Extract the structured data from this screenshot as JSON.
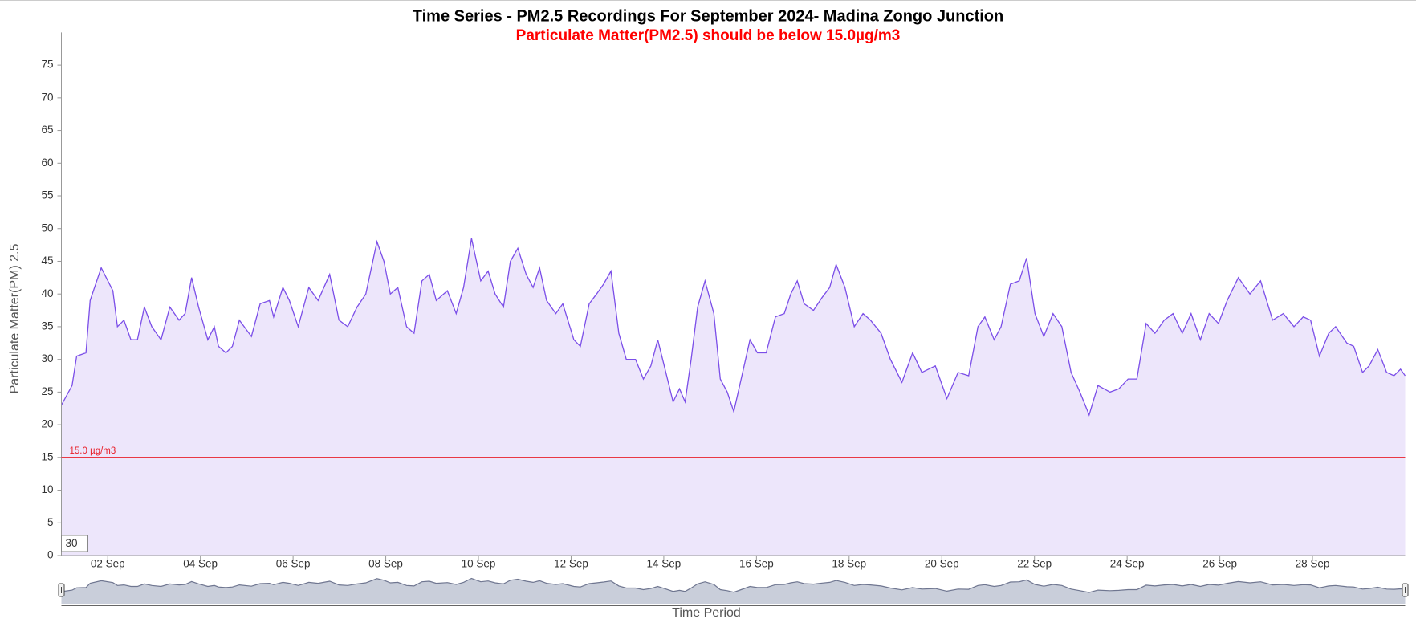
{
  "chart_data": {
    "type": "area",
    "title": "Time Series - PM2.5 Recordings For September 2024- Madina Zongo Junction",
    "subtitle": "Particulate Matter(PM2.5) should be below 15.0µg/m3",
    "ylabel": "Particulate Matter(PM) 2.5",
    "xlabel": "Time Period",
    "color": "#7b4ee8",
    "fill_color": "#ede6fb",
    "rolling_input": 30,
    "threshold": {
      "value": 15,
      "label": "15.0 µg/m3",
      "color": "#e8202a"
    },
    "xlim": [
      1,
      30
    ],
    "xticks": [
      {
        "value": 2,
        "label": "02 Sep"
      },
      {
        "value": 4,
        "label": "04 Sep"
      },
      {
        "value": 6,
        "label": "06 Sep"
      },
      {
        "value": 8,
        "label": "08 Sep"
      },
      {
        "value": 10,
        "label": "10 Sep"
      },
      {
        "value": 12,
        "label": "12 Sep"
      },
      {
        "value": 14,
        "label": "14 Sep"
      },
      {
        "value": 16,
        "label": "16 Sep"
      },
      {
        "value": 18,
        "label": "18 Sep"
      },
      {
        "value": 20,
        "label": "20 Sep"
      },
      {
        "value": 22,
        "label": "22 Sep"
      },
      {
        "value": 24,
        "label": "24 Sep"
      },
      {
        "value": 26,
        "label": "26 Sep"
      },
      {
        "value": 28,
        "label": "28 Sep"
      }
    ],
    "ylim": [
      0,
      80
    ],
    "yticks": [
      0,
      5,
      10,
      15,
      20,
      25,
      30,
      35,
      40,
      45,
      50,
      55,
      60,
      65,
      70,
      75
    ],
    "x": [
      1.0,
      1.23,
      1.33,
      1.53,
      1.62,
      1.86,
      2.11,
      2.21,
      2.35,
      2.5,
      2.64,
      2.79,
      2.95,
      3.15,
      3.34,
      3.54,
      3.67,
      3.81,
      3.96,
      4.16,
      4.3,
      4.39,
      4.55,
      4.69,
      4.84,
      5.1,
      5.29,
      5.49,
      5.58,
      5.78,
      5.92,
      6.11,
      6.34,
      6.54,
      6.79,
      6.99,
      7.18,
      7.38,
      7.57,
      7.81,
      7.96,
      8.1,
      8.26,
      8.45,
      8.61,
      8.78,
      8.94,
      9.09,
      9.33,
      9.52,
      9.68,
      9.85,
      10.05,
      10.21,
      10.36,
      10.54,
      10.69,
      10.85,
      11.03,
      11.18,
      11.32,
      11.47,
      11.67,
      11.82,
      12.06,
      12.2,
      12.39,
      12.55,
      12.7,
      12.86,
      13.03,
      13.19,
      13.39,
      13.56,
      13.72,
      13.87,
      14.01,
      14.2,
      14.34,
      14.46,
      14.59,
      14.73,
      14.89,
      15.08,
      15.22,
      15.37,
      15.51,
      15.67,
      15.86,
      16.02,
      16.21,
      16.41,
      16.6,
      16.74,
      16.88,
      17.03,
      17.23,
      17.42,
      17.58,
      17.72,
      17.91,
      18.11,
      18.3,
      18.46,
      18.69,
      18.89,
      19.14,
      19.37,
      19.57,
      19.86,
      20.11,
      20.35,
      20.58,
      20.78,
      20.93,
      21.13,
      21.28,
      21.48,
      21.67,
      21.83,
      22.01,
      22.2,
      22.4,
      22.59,
      22.79,
      22.98,
      23.18,
      23.37,
      23.63,
      23.82,
      24.02,
      24.21,
      24.41,
      24.6,
      24.8,
      24.99,
      25.19,
      25.38,
      25.58,
      25.77,
      25.97,
      26.16,
      26.4,
      26.65,
      26.88,
      27.14,
      27.37,
      27.6,
      27.8,
      27.96,
      28.15,
      28.35,
      28.5,
      28.74,
      28.89,
      29.08,
      29.22,
      29.41,
      29.6,
      29.76,
      29.9,
      30.0
    ],
    "values": [
      23,
      26,
      30.5,
      31,
      39,
      44,
      40.5,
      35,
      36,
      33,
      33,
      38,
      35,
      33,
      38,
      36,
      37,
      42.5,
      38,
      33,
      35,
      32,
      31,
      32,
      36,
      33.5,
      38.5,
      39,
      36.5,
      41,
      39,
      35,
      41,
      39,
      43,
      36,
      35,
      38,
      40,
      48,
      45,
      40,
      41,
      35,
      34,
      42,
      43,
      39,
      40.5,
      37,
      41,
      48.5,
      42,
      43.5,
      40,
      38,
      45,
      47,
      43,
      41,
      44,
      39,
      37,
      38.5,
      33,
      32,
      38.5,
      40,
      41.5,
      43.5,
      34,
      30,
      30,
      27,
      29,
      33,
      29,
      23.5,
      25.5,
      23.5,
      30,
      38,
      42,
      37,
      27,
      25,
      22,
      27,
      33,
      31,
      31,
      36.5,
      37,
      40,
      42,
      38.5,
      37.5,
      39.5,
      41,
      44.5,
      41,
      35,
      37,
      36,
      34,
      30,
      26.5,
      31,
      28,
      29,
      24,
      28,
      27.5,
      35,
      36.5,
      33,
      35,
      41.5,
      42,
      45.5,
      37,
      33.5,
      37,
      35,
      28,
      25,
      21.5,
      26,
      25,
      25.5,
      27,
      27,
      35.5,
      34,
      36,
      37,
      34,
      37,
      33,
      37,
      35.5,
      39,
      42.5,
      40,
      42,
      36,
      37,
      35,
      36.5,
      36,
      30.5,
      34,
      35,
      32.5,
      32,
      28,
      29,
      31.5,
      28,
      27.5,
      28.5,
      27.5
    ]
  }
}
